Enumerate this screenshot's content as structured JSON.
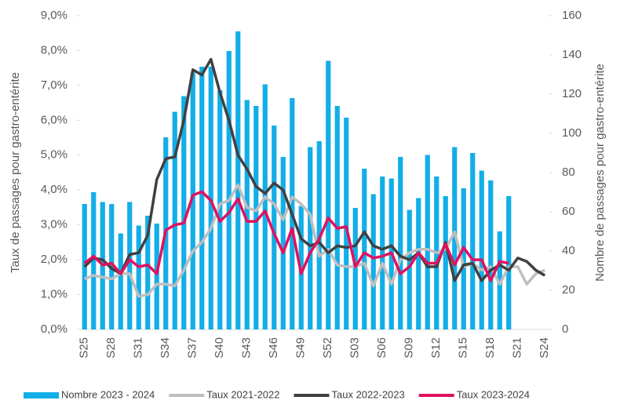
{
  "chart_data": {
    "type": "combo",
    "y_label": "Taux de passages pour gastro-entérite",
    "y2_label": "Nombre de passages pour gastro-entérite",
    "categories": [
      "S25",
      null,
      null,
      "S28",
      null,
      null,
      "S31",
      null,
      null,
      "S34",
      null,
      null,
      "S37",
      null,
      null,
      "S40",
      null,
      null,
      "S43",
      null,
      null,
      "S46",
      null,
      null,
      "S49",
      null,
      null,
      "S52",
      null,
      null,
      "S03",
      null,
      null,
      "S06",
      null,
      null,
      "S09",
      null,
      null,
      "S12",
      null,
      null,
      "S15",
      null,
      null,
      "S18",
      null,
      null,
      "S21",
      null,
      null,
      "S24"
    ],
    "ylim": [
      0,
      9
    ],
    "yticks": [
      {
        "value": 0,
        "label": "0,0%"
      },
      {
        "value": 1,
        "label": "1,0%"
      },
      {
        "value": 2,
        "label": "2,0%"
      },
      {
        "value": 3,
        "label": "3,0%"
      },
      {
        "value": 4,
        "label": "4,0%"
      },
      {
        "value": 5,
        "label": "5,0%"
      },
      {
        "value": 6,
        "label": "6,0%"
      },
      {
        "value": 7,
        "label": "7,0%"
      },
      {
        "value": 8,
        "label": "8,0%"
      },
      {
        "value": 9,
        "label": "9,0%"
      }
    ],
    "y2lim": [
      0,
      160
    ],
    "y2ticks": [
      0,
      20,
      40,
      60,
      80,
      100,
      120,
      140,
      160
    ],
    "legend": "bottom",
    "series": [
      {
        "name": "Nombre 2023 - 2024",
        "type": "bar",
        "axis": "y2",
        "color": "#13aee8",
        "values": [
          64,
          70,
          65,
          64,
          49,
          65,
          53,
          58,
          54,
          98,
          111,
          119,
          131,
          134,
          134,
          122,
          142,
          152,
          117,
          114,
          125,
          104,
          88,
          118,
          63,
          93,
          96,
          137,
          114,
          108,
          62,
          82,
          69,
          78,
          77,
          88,
          61,
          67,
          89,
          78,
          68,
          93,
          72,
          90,
          81,
          76,
          50,
          68,
          null,
          null,
          null,
          null
        ]
      },
      {
        "name": "Taux 2021-2022",
        "type": "line",
        "color": "#bfbfbf",
        "values": [
          1.45,
          1.55,
          1.5,
          1.45,
          1.6,
          1.6,
          0.95,
          1.0,
          1.3,
          1.3,
          1.25,
          1.7,
          2.25,
          2.5,
          2.9,
          3.6,
          3.7,
          4.15,
          3.5,
          3.4,
          3.8,
          3.6,
          3.15,
          3.8,
          3.6,
          3.3,
          2.1,
          2.3,
          1.85,
          1.8,
          1.8,
          1.9,
          1.25,
          1.9,
          1.3,
          2.0,
          2.2,
          2.3,
          2.3,
          2.2,
          2.3,
          2.8,
          1.8,
          1.9,
          1.7,
          1.8,
          1.3,
          1.8,
          1.8,
          1.3,
          1.6,
          1.7
        ]
      },
      {
        "name": "Taux 2022-2023",
        "type": "line",
        "color": "#404040",
        "values": [
          1.8,
          2.05,
          2.0,
          1.75,
          1.6,
          2.15,
          2.2,
          2.7,
          4.3,
          4.9,
          4.95,
          6.0,
          7.45,
          7.3,
          7.75,
          6.8,
          6.0,
          5.0,
          4.6,
          4.1,
          3.9,
          4.2,
          4.0,
          3.3,
          2.6,
          2.4,
          2.5,
          2.2,
          2.4,
          2.35,
          2.4,
          2.8,
          2.4,
          2.3,
          2.4,
          2.1,
          2.0,
          2.2,
          1.8,
          1.8,
          2.5,
          1.4,
          1.85,
          1.9,
          1.4,
          1.7,
          1.85,
          1.7,
          2.05,
          1.95,
          1.7,
          1.55
        ]
      },
      {
        "name": "Taux 2023-2024",
        "type": "line",
        "color": "#e0115f",
        "values": [
          1.9,
          2.1,
          1.85,
          1.9,
          1.6,
          2.0,
          1.8,
          1.85,
          1.6,
          2.85,
          3.0,
          3.05,
          3.85,
          3.95,
          3.7,
          3.1,
          3.35,
          3.75,
          3.1,
          3.1,
          3.4,
          2.75,
          2.2,
          2.9,
          1.6,
          2.2,
          2.6,
          3.2,
          2.9,
          2.95,
          1.8,
          2.2,
          2.05,
          2.1,
          2.2,
          1.6,
          1.8,
          2.2,
          1.9,
          1.9,
          2.45,
          1.85,
          2.35,
          2.0,
          2.0,
          1.4,
          1.95,
          1.9,
          null,
          null,
          null,
          null
        ]
      }
    ]
  }
}
